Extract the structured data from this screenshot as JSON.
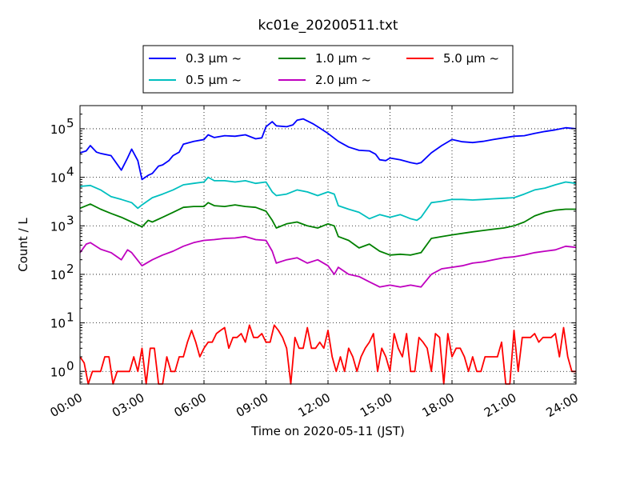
{
  "chart_data": {
    "type": "line",
    "title": "kc01e_20200511.txt",
    "xlabel": "Time on 2020-05-11 (JST)",
    "ylabel": "Count / L",
    "y_scale": "log",
    "ylim": [
      0.55,
      300000
    ],
    "xlim_hours": [
      0,
      24
    ],
    "x_ticks": [
      {
        "hour": 0,
        "label": "00:00"
      },
      {
        "hour": 3,
        "label": "03:00"
      },
      {
        "hour": 6,
        "label": "06:00"
      },
      {
        "hour": 9,
        "label": "09:00"
      },
      {
        "hour": 12,
        "label": "12:00"
      },
      {
        "hour": 15,
        "label": "15:00"
      },
      {
        "hour": 18,
        "label": "18:00"
      },
      {
        "hour": 21,
        "label": "21:00"
      },
      {
        "hour": 24,
        "label": "24:00"
      }
    ],
    "y_ticks": [
      {
        "value": 1,
        "base": "10",
        "exp": "0"
      },
      {
        "value": 10,
        "base": "10",
        "exp": "1"
      },
      {
        "value": 100,
        "base": "10",
        "exp": "2"
      },
      {
        "value": 1000,
        "base": "10",
        "exp": "3"
      },
      {
        "value": 10000,
        "base": "10",
        "exp": "4"
      },
      {
        "value": 100000,
        "base": "10",
        "exp": "5"
      }
    ],
    "grid": true,
    "legend_position": "top",
    "series": [
      {
        "name": "0.3 μm  ~",
        "color": "#0000ff",
        "x": [
          0,
          0.3,
          0.5,
          0.8,
          1.0,
          1.5,
          2.0,
          2.3,
          2.5,
          2.8,
          3.0,
          3.3,
          3.5,
          3.8,
          4.0,
          4.3,
          4.5,
          4.8,
          5.0,
          5.5,
          6.0,
          6.2,
          6.5,
          7.0,
          7.5,
          8.0,
          8.5,
          8.8,
          9.0,
          9.3,
          9.5,
          10.0,
          10.3,
          10.5,
          10.8,
          11.0,
          11.3,
          11.5,
          12.0,
          12.5,
          13.0,
          13.5,
          14.0,
          14.3,
          14.5,
          14.8,
          15.0,
          15.5,
          16.0,
          16.3,
          16.5,
          17.0,
          17.5,
          18.0,
          18.5,
          19.0,
          19.5,
          20.0,
          20.5,
          21.0,
          21.5,
          22.0,
          22.5,
          23.0,
          23.5,
          24.0
        ],
        "values": [
          32000,
          35000,
          45000,
          33000,
          31000,
          28000,
          14000,
          25000,
          38000,
          22000,
          9000,
          11000,
          12000,
          17000,
          18000,
          22000,
          28000,
          33000,
          48000,
          55000,
          60000,
          75000,
          66000,
          72000,
          70000,
          75000,
          62000,
          65000,
          110000,
          140000,
          115000,
          110000,
          120000,
          150000,
          160000,
          145000,
          125000,
          110000,
          80000,
          55000,
          42000,
          36000,
          35000,
          30000,
          23000,
          22000,
          25000,
          23000,
          20000,
          19000,
          20000,
          32000,
          45000,
          60000,
          54000,
          52000,
          55000,
          60000,
          65000,
          70000,
          72000,
          80000,
          88000,
          95000,
          105000,
          100000
        ]
      },
      {
        "name": "0.5 μm  ~",
        "color": "#00bfbf",
        "x": [
          0,
          0.5,
          1.0,
          1.5,
          2.0,
          2.5,
          2.8,
          3.0,
          3.5,
          4.0,
          4.5,
          5.0,
          5.5,
          6.0,
          6.2,
          6.5,
          7.0,
          7.5,
          8.0,
          8.5,
          9.0,
          9.3,
          9.5,
          10.0,
          10.5,
          11.0,
          11.5,
          12.0,
          12.3,
          12.5,
          13.0,
          13.5,
          14.0,
          14.5,
          15.0,
          15.5,
          16.0,
          16.3,
          16.5,
          17.0,
          17.5,
          18.0,
          18.5,
          19.0,
          19.5,
          20.0,
          20.5,
          21.0,
          21.5,
          22.0,
          22.5,
          23.0,
          23.5,
          24.0
        ],
        "values": [
          6500,
          6800,
          5500,
          4000,
          3500,
          3000,
          2300,
          2700,
          3800,
          4500,
          5500,
          7000,
          7500,
          8000,
          10000,
          8500,
          8500,
          8000,
          8500,
          7500,
          8000,
          5000,
          4200,
          4500,
          5500,
          5000,
          4200,
          5000,
          4500,
          2600,
          2200,
          1900,
          1400,
          1700,
          1500,
          1700,
          1400,
          1300,
          1500,
          3000,
          3200,
          3500,
          3500,
          3400,
          3500,
          3600,
          3700,
          3800,
          4500,
          5500,
          6000,
          7000,
          8000,
          7500
        ]
      },
      {
        "name": "1.0 μm  ~",
        "color": "#008000",
        "x": [
          0,
          0.5,
          1.0,
          1.5,
          2.0,
          2.5,
          3.0,
          3.3,
          3.5,
          4.0,
          4.5,
          5.0,
          5.5,
          6.0,
          6.2,
          6.5,
          7.0,
          7.5,
          8.0,
          8.5,
          9.0,
          9.3,
          9.5,
          10.0,
          10.5,
          11.0,
          11.5,
          12.0,
          12.3,
          12.5,
          13.0,
          13.5,
          14.0,
          14.5,
          15.0,
          15.5,
          16.0,
          16.5,
          17.0,
          17.5,
          18.0,
          18.5,
          19.0,
          19.5,
          20.0,
          20.5,
          21.0,
          21.5,
          22.0,
          22.5,
          23.0,
          23.5,
          24.0
        ],
        "values": [
          2300,
          2800,
          2200,
          1800,
          1500,
          1200,
          950,
          1300,
          1200,
          1500,
          1900,
          2400,
          2500,
          2500,
          3000,
          2600,
          2500,
          2700,
          2500,
          2400,
          2000,
          1300,
          900,
          1100,
          1200,
          1000,
          900,
          1100,
          1000,
          600,
          500,
          350,
          420,
          300,
          250,
          260,
          250,
          280,
          550,
          600,
          650,
          700,
          750,
          800,
          850,
          900,
          1000,
          1200,
          1600,
          1900,
          2100,
          2200,
          2200
        ]
      },
      {
        "name": "2.0 μm  ~",
        "color": "#bf00bf",
        "x": [
          0,
          0.3,
          0.5,
          1.0,
          1.5,
          2.0,
          2.3,
          2.5,
          3.0,
          3.5,
          4.0,
          4.5,
          5.0,
          5.5,
          6.0,
          6.5,
          7.0,
          7.5,
          8.0,
          8.5,
          9.0,
          9.3,
          9.5,
          10.0,
          10.5,
          11.0,
          11.5,
          12.0,
          12.3,
          12.5,
          13.0,
          13.5,
          14.0,
          14.5,
          15.0,
          15.5,
          16.0,
          16.5,
          17.0,
          17.5,
          18.0,
          18.5,
          19.0,
          19.5,
          20.0,
          20.5,
          21.0,
          21.5,
          22.0,
          22.5,
          23.0,
          23.5,
          24.0
        ],
        "values": [
          280,
          420,
          450,
          330,
          280,
          200,
          320,
          280,
          150,
          200,
          250,
          300,
          380,
          450,
          500,
          520,
          550,
          560,
          600,
          520,
          500,
          300,
          170,
          200,
          220,
          170,
          200,
          150,
          100,
          140,
          100,
          90,
          70,
          55,
          60,
          55,
          60,
          55,
          100,
          130,
          140,
          150,
          170,
          180,
          200,
          220,
          230,
          250,
          280,
          300,
          320,
          380,
          360
        ]
      },
      {
        "name": "5.0 μm  ~",
        "color": "#ff0000",
        "x": [
          0,
          0.2,
          0.4,
          0.6,
          0.8,
          1.0,
          1.2,
          1.4,
          1.6,
          1.8,
          2.0,
          2.2,
          2.4,
          2.6,
          2.8,
          3.0,
          3.2,
          3.4,
          3.6,
          3.8,
          4.0,
          4.2,
          4.4,
          4.6,
          4.8,
          5.0,
          5.2,
          5.4,
          5.6,
          5.8,
          6.0,
          6.2,
          6.4,
          6.6,
          6.8,
          7.0,
          7.2,
          7.4,
          7.6,
          7.8,
          8.0,
          8.2,
          8.4,
          8.6,
          8.8,
          9.0,
          9.2,
          9.4,
          9.6,
          9.8,
          10.0,
          10.2,
          10.4,
          10.6,
          10.8,
          11.0,
          11.2,
          11.4,
          11.6,
          11.8,
          12.0,
          12.2,
          12.4,
          12.6,
          12.8,
          13.0,
          13.2,
          13.4,
          13.6,
          13.8,
          14.0,
          14.2,
          14.4,
          14.6,
          14.8,
          15.0,
          15.2,
          15.4,
          15.6,
          15.8,
          16.0,
          16.2,
          16.4,
          16.6,
          16.8,
          17.0,
          17.2,
          17.4,
          17.6,
          17.8,
          18.0,
          18.2,
          18.4,
          18.6,
          18.8,
          19.0,
          19.2,
          19.4,
          19.6,
          19.8,
          20.0,
          20.2,
          20.4,
          20.6,
          20.8,
          21.0,
          21.2,
          21.4,
          21.6,
          21.8,
          22.0,
          22.2,
          22.4,
          22.6,
          22.8,
          23.0,
          23.2,
          23.4,
          23.6,
          23.8,
          24.0
        ],
        "values": [
          2,
          1.5,
          0.5,
          1,
          1,
          1,
          2,
          2,
          0.5,
          1,
          1,
          1,
          1,
          2,
          1,
          3,
          0.5,
          3,
          3,
          0.5,
          0.5,
          2,
          1,
          1,
          2,
          2,
          4,
          7,
          4,
          2,
          3,
          4,
          4,
          6,
          7,
          8,
          3,
          5,
          5,
          6,
          4,
          9,
          5,
          5,
          6,
          4,
          4,
          9,
          7,
          5,
          3,
          0.5,
          5,
          3,
          3,
          8,
          3,
          3,
          4,
          3,
          7,
          2,
          1,
          2,
          1,
          3,
          2,
          1,
          2,
          3,
          4,
          6,
          1,
          3,
          2,
          1,
          6,
          3,
          2,
          6,
          1,
          1,
          5,
          4,
          3,
          1,
          6,
          5,
          0.5,
          6,
          2,
          3,
          3,
          2,
          1,
          2,
          1,
          1,
          2,
          2,
          2,
          2,
          4,
          0.5,
          0.5,
          7,
          1,
          5,
          5,
          5,
          6,
          4,
          5,
          5,
          5,
          6,
          2,
          8,
          2,
          1,
          1
        ]
      }
    ]
  }
}
